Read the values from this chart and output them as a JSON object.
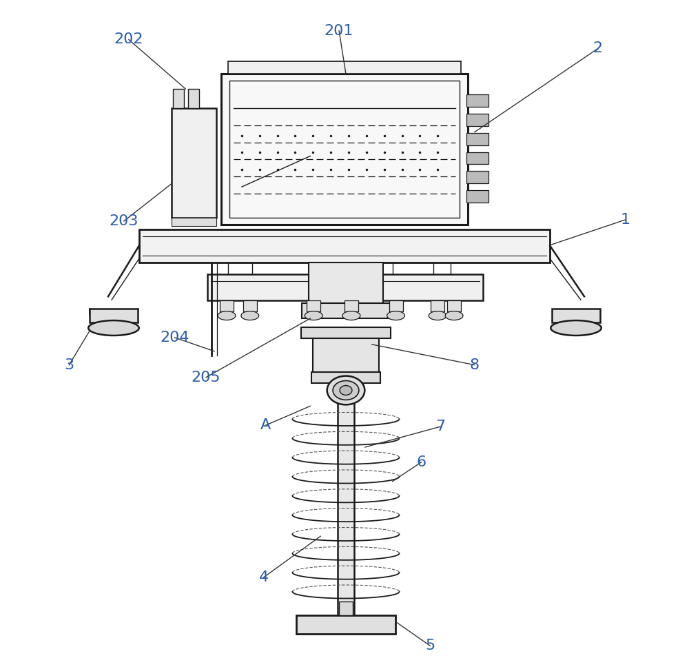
{
  "bg_color": "#ffffff",
  "line_color": "#1a1a1a",
  "label_color": "#2a5caa",
  "figure_size": [
    10.0,
    9.55
  ],
  "dpi": 100
}
